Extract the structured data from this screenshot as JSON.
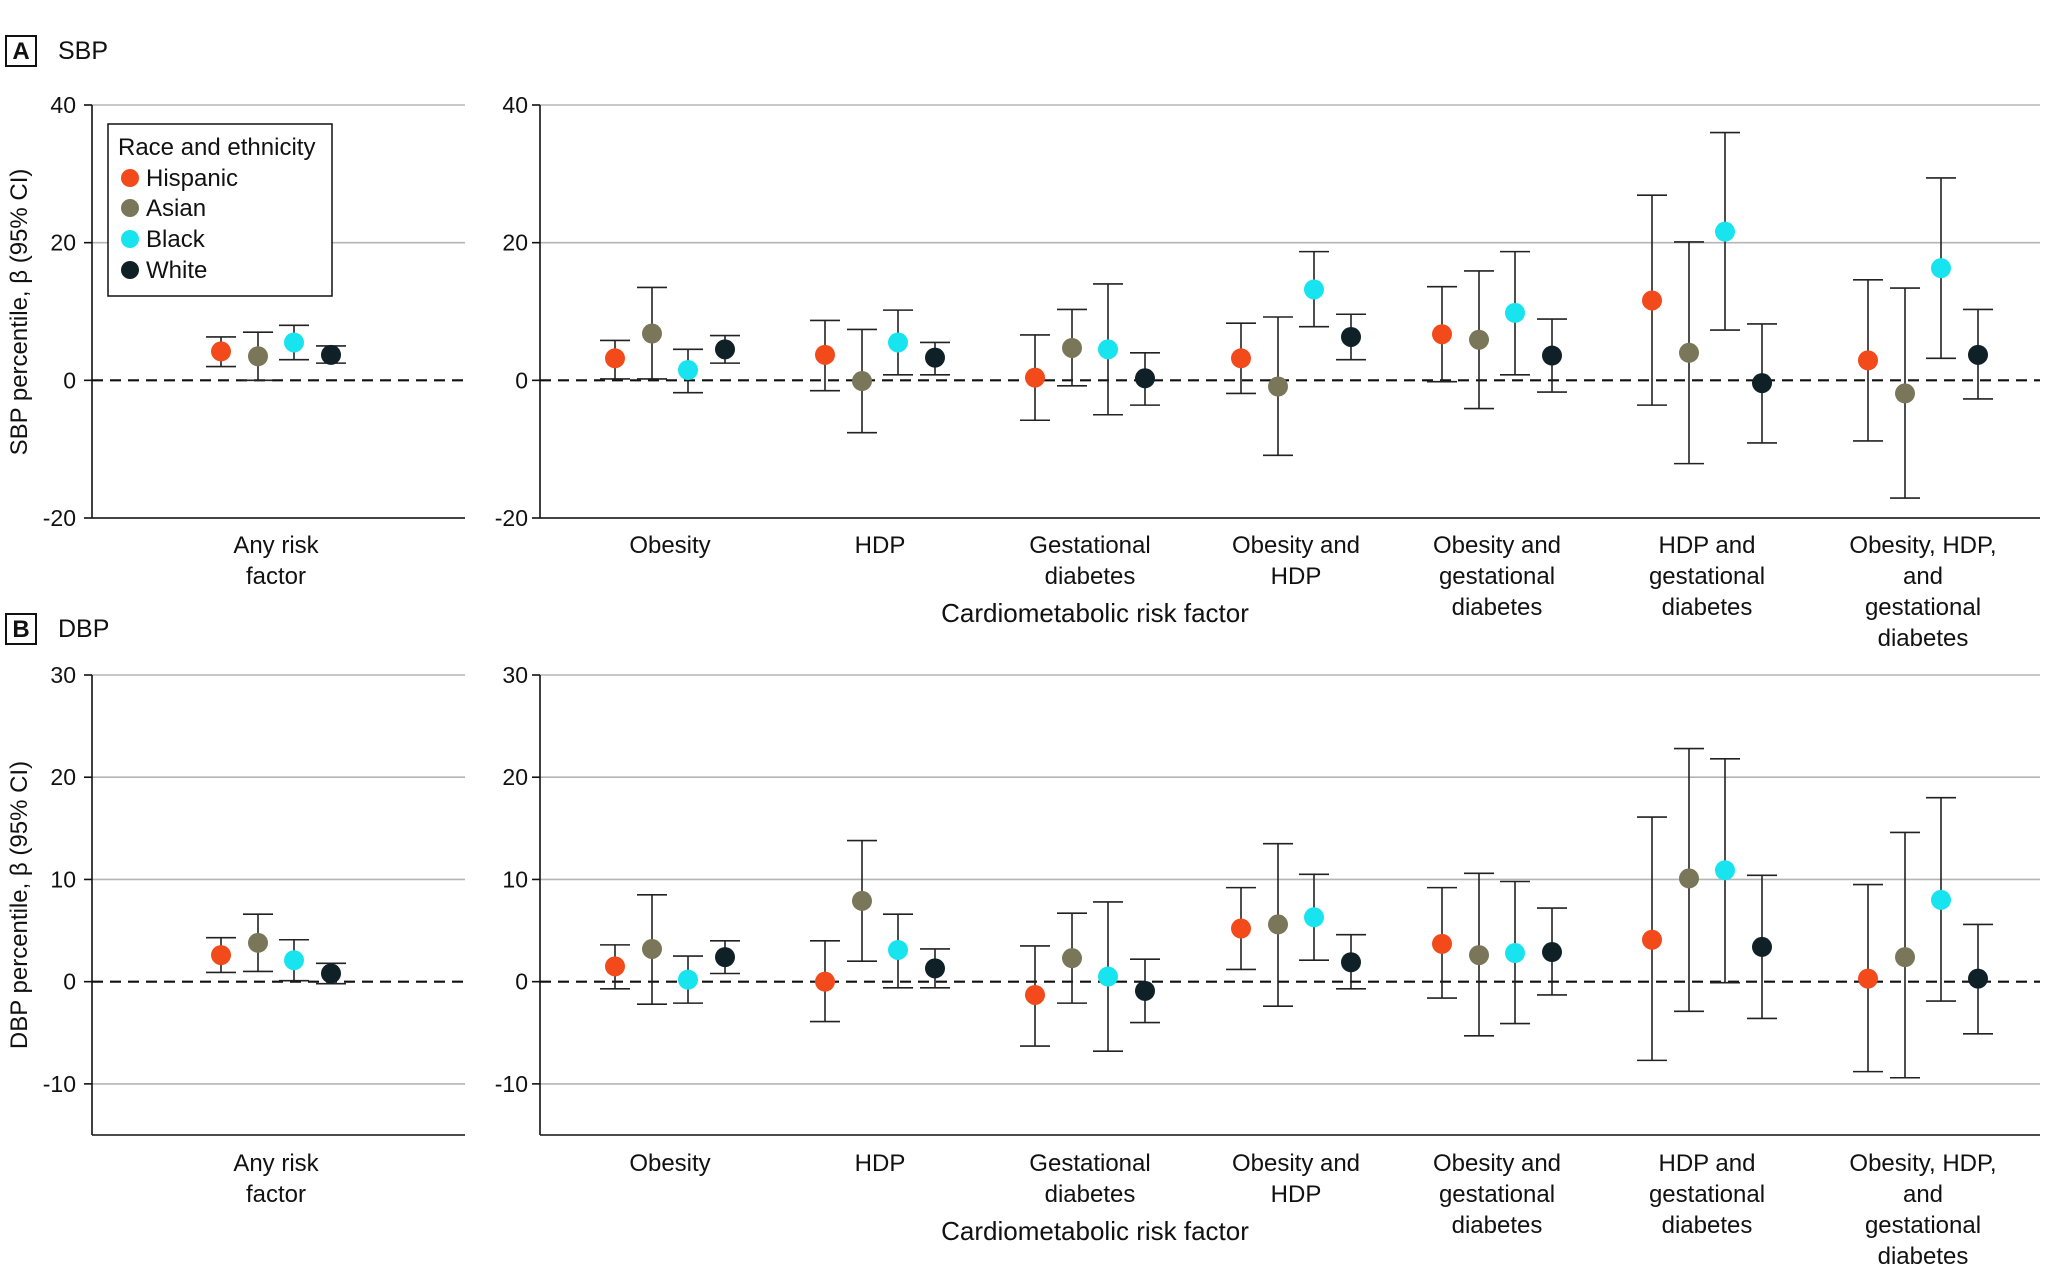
{
  "legend": {
    "title": "Race and ethnicity",
    "items": [
      {
        "name": "Hispanic",
        "color": "#f24a1b"
      },
      {
        "name": "Asian",
        "color": "#7a7659"
      },
      {
        "name": "Black",
        "color": "#17e4ef"
      },
      {
        "name": "White",
        "color": "#0f2126"
      }
    ]
  },
  "chart_data": [
    {
      "type": "scatter",
      "subtype": "forest-plot",
      "panel_label": "A",
      "title": "SBP",
      "ylabel": "SBP percentile, β (95% CI)",
      "xlabel": "Cardiometabolic risk factor",
      "ylim": [
        -20,
        40
      ],
      "yticks": [
        -20,
        0,
        20,
        40
      ],
      "reference_line": 0,
      "series_order": [
        "Hispanic",
        "Asian",
        "Black",
        "White"
      ],
      "groups": [
        {
          "label": "Any risk factor",
          "estimates": [
            {
              "series": "Hispanic",
              "value": 4.2,
              "lo": 2.0,
              "hi": 6.3
            },
            {
              "series": "Asian",
              "value": 3.5,
              "lo": 0.0,
              "hi": 7.0
            },
            {
              "series": "Black",
              "value": 5.5,
              "lo": 3.0,
              "hi": 8.0
            },
            {
              "series": "White",
              "value": 3.7,
              "lo": 2.5,
              "hi": 5.0
            }
          ]
        },
        {
          "label": "Obesity",
          "estimates": [
            {
              "series": "Hispanic",
              "value": 3.2,
              "lo": 0.2,
              "hi": 5.8
            },
            {
              "series": "Asian",
              "value": 6.8,
              "lo": 0.2,
              "hi": 13.5
            },
            {
              "series": "Black",
              "value": 1.5,
              "lo": -1.8,
              "hi": 4.5
            },
            {
              "series": "White",
              "value": 4.5,
              "lo": 2.5,
              "hi": 6.5
            }
          ]
        },
        {
          "label": "HDP",
          "estimates": [
            {
              "series": "Hispanic",
              "value": 3.7,
              "lo": -1.5,
              "hi": 8.7
            },
            {
              "series": "Asian",
              "value": -0.1,
              "lo": -7.6,
              "hi": 7.4
            },
            {
              "series": "Black",
              "value": 5.5,
              "lo": 0.8,
              "hi": 10.2
            },
            {
              "series": "White",
              "value": 3.3,
              "lo": 0.8,
              "hi": 5.5
            }
          ]
        },
        {
          "label": "Gestational diabetes",
          "estimates": [
            {
              "series": "Hispanic",
              "value": 0.4,
              "lo": -5.8,
              "hi": 6.6
            },
            {
              "series": "Asian",
              "value": 4.7,
              "lo": -0.8,
              "hi": 10.3
            },
            {
              "series": "Black",
              "value": 4.5,
              "lo": -5.0,
              "hi": 14.0
            },
            {
              "series": "White",
              "value": 0.3,
              "lo": -3.6,
              "hi": 4.0
            }
          ]
        },
        {
          "label": "Obesity and HDP",
          "estimates": [
            {
              "series": "Hispanic",
              "value": 3.2,
              "lo": -1.9,
              "hi": 8.3
            },
            {
              "series": "Asian",
              "value": -0.9,
              "lo": -10.9,
              "hi": 9.2
            },
            {
              "series": "Black",
              "value": 13.2,
              "lo": 7.8,
              "hi": 18.7
            },
            {
              "series": "White",
              "value": 6.3,
              "lo": 3.0,
              "hi": 9.6
            }
          ]
        },
        {
          "label": "Obesity and gestational diabetes",
          "estimates": [
            {
              "series": "Hispanic",
              "value": 6.7,
              "lo": -0.2,
              "hi": 13.6
            },
            {
              "series": "Asian",
              "value": 5.9,
              "lo": -4.1,
              "hi": 15.9
            },
            {
              "series": "Black",
              "value": 9.8,
              "lo": 0.8,
              "hi": 18.7
            },
            {
              "series": "White",
              "value": 3.6,
              "lo": -1.7,
              "hi": 8.9
            }
          ]
        },
        {
          "label": "HDP and gestational diabetes",
          "estimates": [
            {
              "series": "Hispanic",
              "value": 11.6,
              "lo": -3.6,
              "hi": 26.9
            },
            {
              "series": "Asian",
              "value": 4.0,
              "lo": -12.1,
              "hi": 20.1
            },
            {
              "series": "Black",
              "value": 21.6,
              "lo": 7.3,
              "hi": 36.0
            },
            {
              "series": "White",
              "value": -0.4,
              "lo": -9.1,
              "hi": 8.2
            }
          ]
        },
        {
          "label": "Obesity, HDP, and gestational diabetes",
          "estimates": [
            {
              "series": "Hispanic",
              "value": 2.9,
              "lo": -8.8,
              "hi": 14.6
            },
            {
              "series": "Asian",
              "value": -1.9,
              "lo": -17.1,
              "hi": 13.4
            },
            {
              "series": "Black",
              "value": 16.3,
              "lo": 3.2,
              "hi": 29.4
            },
            {
              "series": "White",
              "value": 3.7,
              "lo": -2.7,
              "hi": 10.3
            }
          ]
        }
      ]
    },
    {
      "type": "scatter",
      "subtype": "forest-plot",
      "panel_label": "B",
      "title": "DBP",
      "ylabel": "DBP percentile, β (95% CI)",
      "xlabel": "Cardiometabolic risk factor",
      "ylim": [
        -15,
        30
      ],
      "yticks": [
        -10,
        0,
        10,
        20,
        30
      ],
      "reference_line": 0,
      "series_order": [
        "Hispanic",
        "Asian",
        "Black",
        "White"
      ],
      "groups": [
        {
          "label": "Any risk factor",
          "estimates": [
            {
              "series": "Hispanic",
              "value": 2.6,
              "lo": 0.9,
              "hi": 4.3
            },
            {
              "series": "Asian",
              "value": 3.8,
              "lo": 1.0,
              "hi": 6.6
            },
            {
              "series": "Black",
              "value": 2.1,
              "lo": 0.1,
              "hi": 4.1
            },
            {
              "series": "White",
              "value": 0.8,
              "lo": -0.2,
              "hi": 1.8
            }
          ]
        },
        {
          "label": "Obesity",
          "estimates": [
            {
              "series": "Hispanic",
              "value": 1.5,
              "lo": -0.7,
              "hi": 3.6
            },
            {
              "series": "Asian",
              "value": 3.2,
              "lo": -2.2,
              "hi": 8.5
            },
            {
              "series": "Black",
              "value": 0.2,
              "lo": -2.1,
              "hi": 2.5
            },
            {
              "series": "White",
              "value": 2.4,
              "lo": 0.8,
              "hi": 4.0
            }
          ]
        },
        {
          "label": "HDP",
          "estimates": [
            {
              "series": "Hispanic",
              "value": 0.0,
              "lo": -3.9,
              "hi": 4.0
            },
            {
              "series": "Asian",
              "value": 7.9,
              "lo": 2.0,
              "hi": 13.8
            },
            {
              "series": "Black",
              "value": 3.1,
              "lo": -0.6,
              "hi": 6.6
            },
            {
              "series": "White",
              "value": 1.3,
              "lo": -0.6,
              "hi": 3.2
            }
          ]
        },
        {
          "label": "Gestational diabetes",
          "estimates": [
            {
              "series": "Hispanic",
              "value": -1.3,
              "lo": -6.3,
              "hi": 3.5
            },
            {
              "series": "Asian",
              "value": 2.3,
              "lo": -2.1,
              "hi": 6.7
            },
            {
              "series": "Black",
              "value": 0.5,
              "lo": -6.8,
              "hi": 7.8
            },
            {
              "series": "White",
              "value": -0.9,
              "lo": -4.0,
              "hi": 2.2
            }
          ]
        },
        {
          "label": "Obesity and HDP",
          "estimates": [
            {
              "series": "Hispanic",
              "value": 5.2,
              "lo": 1.2,
              "hi": 9.2
            },
            {
              "series": "Asian",
              "value": 5.6,
              "lo": -2.4,
              "hi": 13.5
            },
            {
              "series": "Black",
              "value": 6.3,
              "lo": 2.1,
              "hi": 10.5
            },
            {
              "series": "White",
              "value": 1.9,
              "lo": -0.7,
              "hi": 4.6
            }
          ]
        },
        {
          "label": "Obesity and gestational diabetes",
          "estimates": [
            {
              "series": "Hispanic",
              "value": 3.7,
              "lo": -1.6,
              "hi": 9.2
            },
            {
              "series": "Asian",
              "value": 2.6,
              "lo": -5.3,
              "hi": 10.6
            },
            {
              "series": "Black",
              "value": 2.8,
              "lo": -4.1,
              "hi": 9.8
            },
            {
              "series": "White",
              "value": 2.9,
              "lo": -1.3,
              "hi": 7.2
            }
          ]
        },
        {
          "label": "HDP and gestational diabetes",
          "estimates": [
            {
              "series": "Hispanic",
              "value": 4.1,
              "lo": -7.7,
              "hi": 16.1
            },
            {
              "series": "Asian",
              "value": 10.1,
              "lo": -2.9,
              "hi": 22.8
            },
            {
              "series": "Black",
              "value": 10.9,
              "lo": -0.1,
              "hi": 21.8
            },
            {
              "series": "White",
              "value": 3.4,
              "lo": -3.6,
              "hi": 10.4
            }
          ]
        },
        {
          "label": "Obesity, HDP, and gestational diabetes",
          "estimates": [
            {
              "series": "Hispanic",
              "value": 0.3,
              "lo": -8.8,
              "hi": 9.5
            },
            {
              "series": "Asian",
              "value": 2.4,
              "lo": -9.4,
              "hi": 14.6
            },
            {
              "series": "Black",
              "value": 8.0,
              "lo": -1.9,
              "hi": 18.0
            },
            {
              "series": "White",
              "value": 0.3,
              "lo": -5.1,
              "hi": 5.6
            }
          ]
        }
      ]
    }
  ]
}
